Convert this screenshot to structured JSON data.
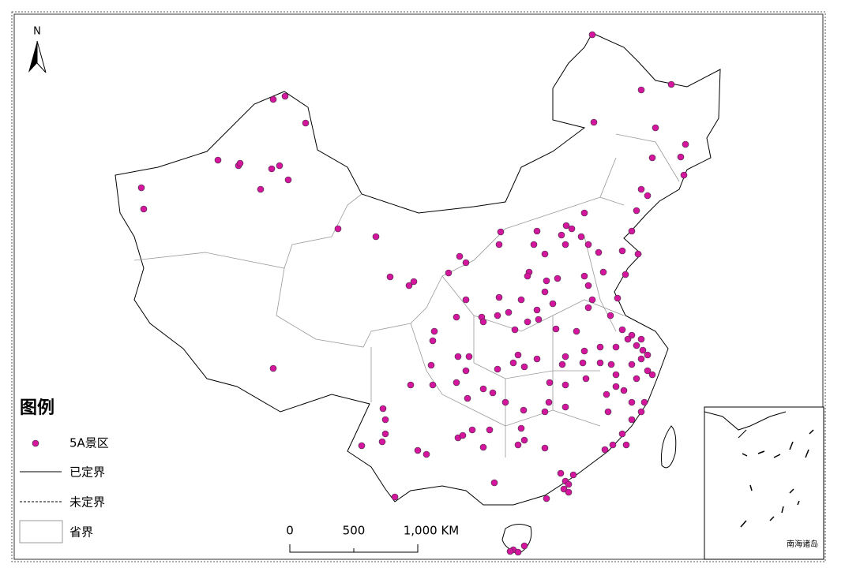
{
  "north": "N",
  "legend": {
    "title": "图例",
    "items": [
      "5A景区",
      "已定界",
      "未定界",
      "省界"
    ]
  },
  "scale_bar": {
    "labels": [
      "0",
      "500",
      "1,000 KM"
    ]
  },
  "inset": {
    "label": "南海诸岛"
  }
}
